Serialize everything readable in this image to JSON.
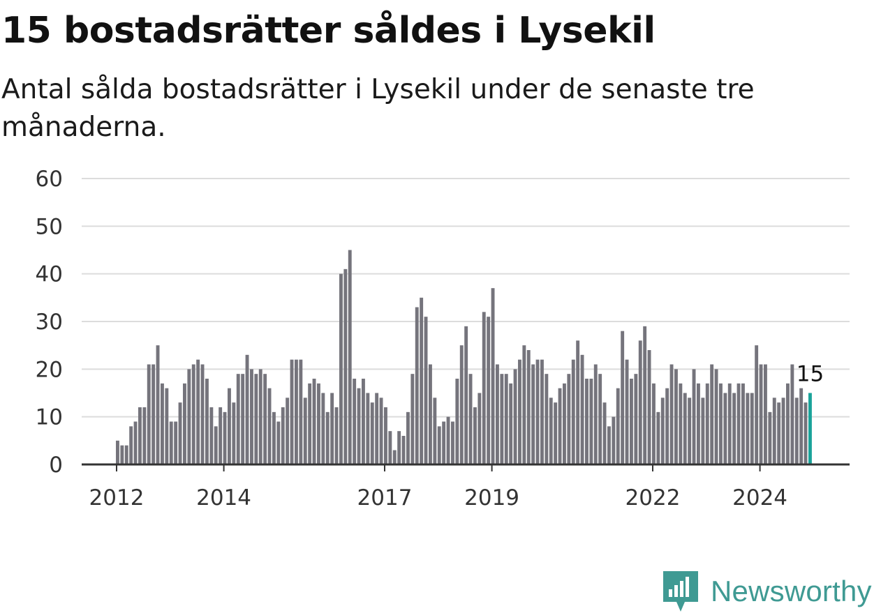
{
  "title": "15 bostadsrätter såldes i Lysekil",
  "subtitle": "Antal sålda bostadsrätter i Lysekil under de senaste tre månaderna.",
  "brand": {
    "name": "Newsworthy",
    "icon": "newsworthy-logo-icon"
  },
  "colors": {
    "bar": "#75747c",
    "highlight": "#1aa39a",
    "grid": "#dcdcdc",
    "axis": "#333333",
    "brand": "#3f9a93"
  },
  "chart_data": {
    "type": "bar",
    "ylim": [
      0,
      60
    ],
    "yticks": [
      "0",
      "10",
      "20",
      "30",
      "40",
      "50",
      "60"
    ],
    "xtick_labels": [
      {
        "label": "2012",
        "index": 0
      },
      {
        "label": "2014",
        "index": 24
      },
      {
        "label": "2017",
        "index": 60
      },
      {
        "label": "2019",
        "index": 84
      },
      {
        "label": "2022",
        "index": 120
      },
      {
        "label": "2024",
        "index": 144
      }
    ],
    "values": [
      5,
      4,
      4,
      8,
      9,
      12,
      12,
      21,
      21,
      25,
      17,
      16,
      9,
      9,
      13,
      17,
      20,
      21,
      22,
      21,
      18,
      12,
      8,
      12,
      11,
      16,
      13,
      19,
      19,
      23,
      20,
      19,
      20,
      19,
      16,
      11,
      9,
      12,
      14,
      22,
      22,
      22,
      14,
      17,
      18,
      17,
      15,
      11,
      15,
      12,
      40,
      41,
      45,
      18,
      16,
      18,
      15,
      13,
      15,
      14,
      12,
      7,
      3,
      7,
      6,
      11,
      19,
      33,
      35,
      31,
      21,
      14,
      8,
      9,
      10,
      9,
      18,
      25,
      29,
      19,
      12,
      15,
      32,
      31,
      37,
      21,
      19,
      19,
      17,
      20,
      22,
      25,
      24,
      21,
      22,
      22,
      19,
      14,
      13,
      16,
      17,
      19,
      22,
      26,
      23,
      18,
      18,
      21,
      19,
      13,
      8,
      10,
      16,
      28,
      22,
      18,
      19,
      26,
      29,
      24,
      17,
      11,
      14,
      16,
      21,
      20,
      17,
      15,
      14,
      20,
      17,
      14,
      17,
      21,
      20,
      17,
      15,
      17,
      15,
      17,
      17,
      15,
      15,
      25,
      21,
      21,
      11,
      14,
      13,
      14,
      17,
      21,
      14,
      16,
      13,
      15
    ],
    "highlight_index": 155,
    "highlight_label": "15"
  }
}
